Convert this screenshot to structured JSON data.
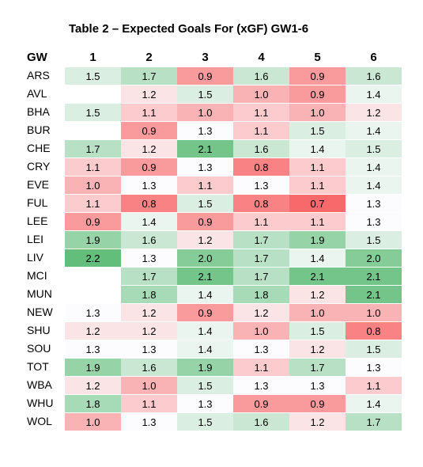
{
  "title": "Table 2 – Expected Goals For (xGF) GW1-6",
  "header_label": "GW",
  "columns": [
    "1",
    "2",
    "3",
    "4",
    "5",
    "6"
  ],
  "rows": [
    {
      "team": "ARS",
      "values": [
        "1.5",
        "1.7",
        "0.9",
        "1.6",
        "0.9",
        "1.6"
      ]
    },
    {
      "team": "AVL",
      "values": [
        "",
        "1.2",
        "1.5",
        "1.0",
        "0.9",
        "1.4"
      ]
    },
    {
      "team": "BHA",
      "values": [
        "1.5",
        "1.1",
        "1.0",
        "1.1",
        "1.0",
        "1.2"
      ]
    },
    {
      "team": "BUR",
      "values": [
        "",
        "0.9",
        "1.3",
        "1.1",
        "1.5",
        "1.4"
      ]
    },
    {
      "team": "CHE",
      "values": [
        "1.7",
        "1.2",
        "2.1",
        "1.6",
        "1.4",
        "1.5"
      ]
    },
    {
      "team": "CRY",
      "values": [
        "1.1",
        "0.9",
        "1.3",
        "0.8",
        "1.1",
        "1.4"
      ]
    },
    {
      "team": "EVE",
      "values": [
        "1.0",
        "1.3",
        "1.1",
        "1.3",
        "1.1",
        "1.4"
      ]
    },
    {
      "team": "FUL",
      "values": [
        "1.1",
        "0.8",
        "1.5",
        "0.8",
        "0.7",
        "1.3"
      ]
    },
    {
      "team": "LEE",
      "values": [
        "0.9",
        "1.4",
        "0.9",
        "1.1",
        "1.1",
        "1.3"
      ]
    },
    {
      "team": "LEI",
      "values": [
        "1.9",
        "1.6",
        "1.2",
        "1.7",
        "1.9",
        "1.5"
      ]
    },
    {
      "team": "LIV",
      "values": [
        "2.2",
        "1.3",
        "2.0",
        "1.7",
        "1.4",
        "2.0"
      ]
    },
    {
      "team": "MCI",
      "values": [
        "",
        "1.7",
        "2.1",
        "1.7",
        "2.1",
        "2.1"
      ]
    },
    {
      "team": "MUN",
      "values": [
        "",
        "1.8",
        "1.4",
        "1.8",
        "1.2",
        "2.1"
      ]
    },
    {
      "team": "NEW",
      "values": [
        "1.3",
        "1.2",
        "0.9",
        "1.2",
        "1.0",
        "1.0"
      ]
    },
    {
      "team": "SHU",
      "values": [
        "1.2",
        "1.2",
        "1.4",
        "1.0",
        "1.5",
        "0.8"
      ]
    },
    {
      "team": "SOU",
      "values": [
        "1.3",
        "1.3",
        "1.4",
        "1.3",
        "1.2",
        "1.5"
      ]
    },
    {
      "team": "TOT",
      "values": [
        "1.9",
        "1.6",
        "1.9",
        "1.1",
        "1.7",
        "1.3"
      ]
    },
    {
      "team": "WBA",
      "values": [
        "1.2",
        "1.0",
        "1.5",
        "1.3",
        "1.3",
        "1.1"
      ]
    },
    {
      "team": "WHU",
      "values": [
        "1.8",
        "1.1",
        "1.3",
        "0.9",
        "0.9",
        "1.4"
      ]
    },
    {
      "team": "WOL",
      "values": [
        "1.0",
        "1.3",
        "1.5",
        "1.6",
        "1.2",
        "1.7"
      ]
    }
  ],
  "colors": {
    "low": "#f8696b",
    "mid": "#fcfcff",
    "high": "#63be7b"
  }
}
